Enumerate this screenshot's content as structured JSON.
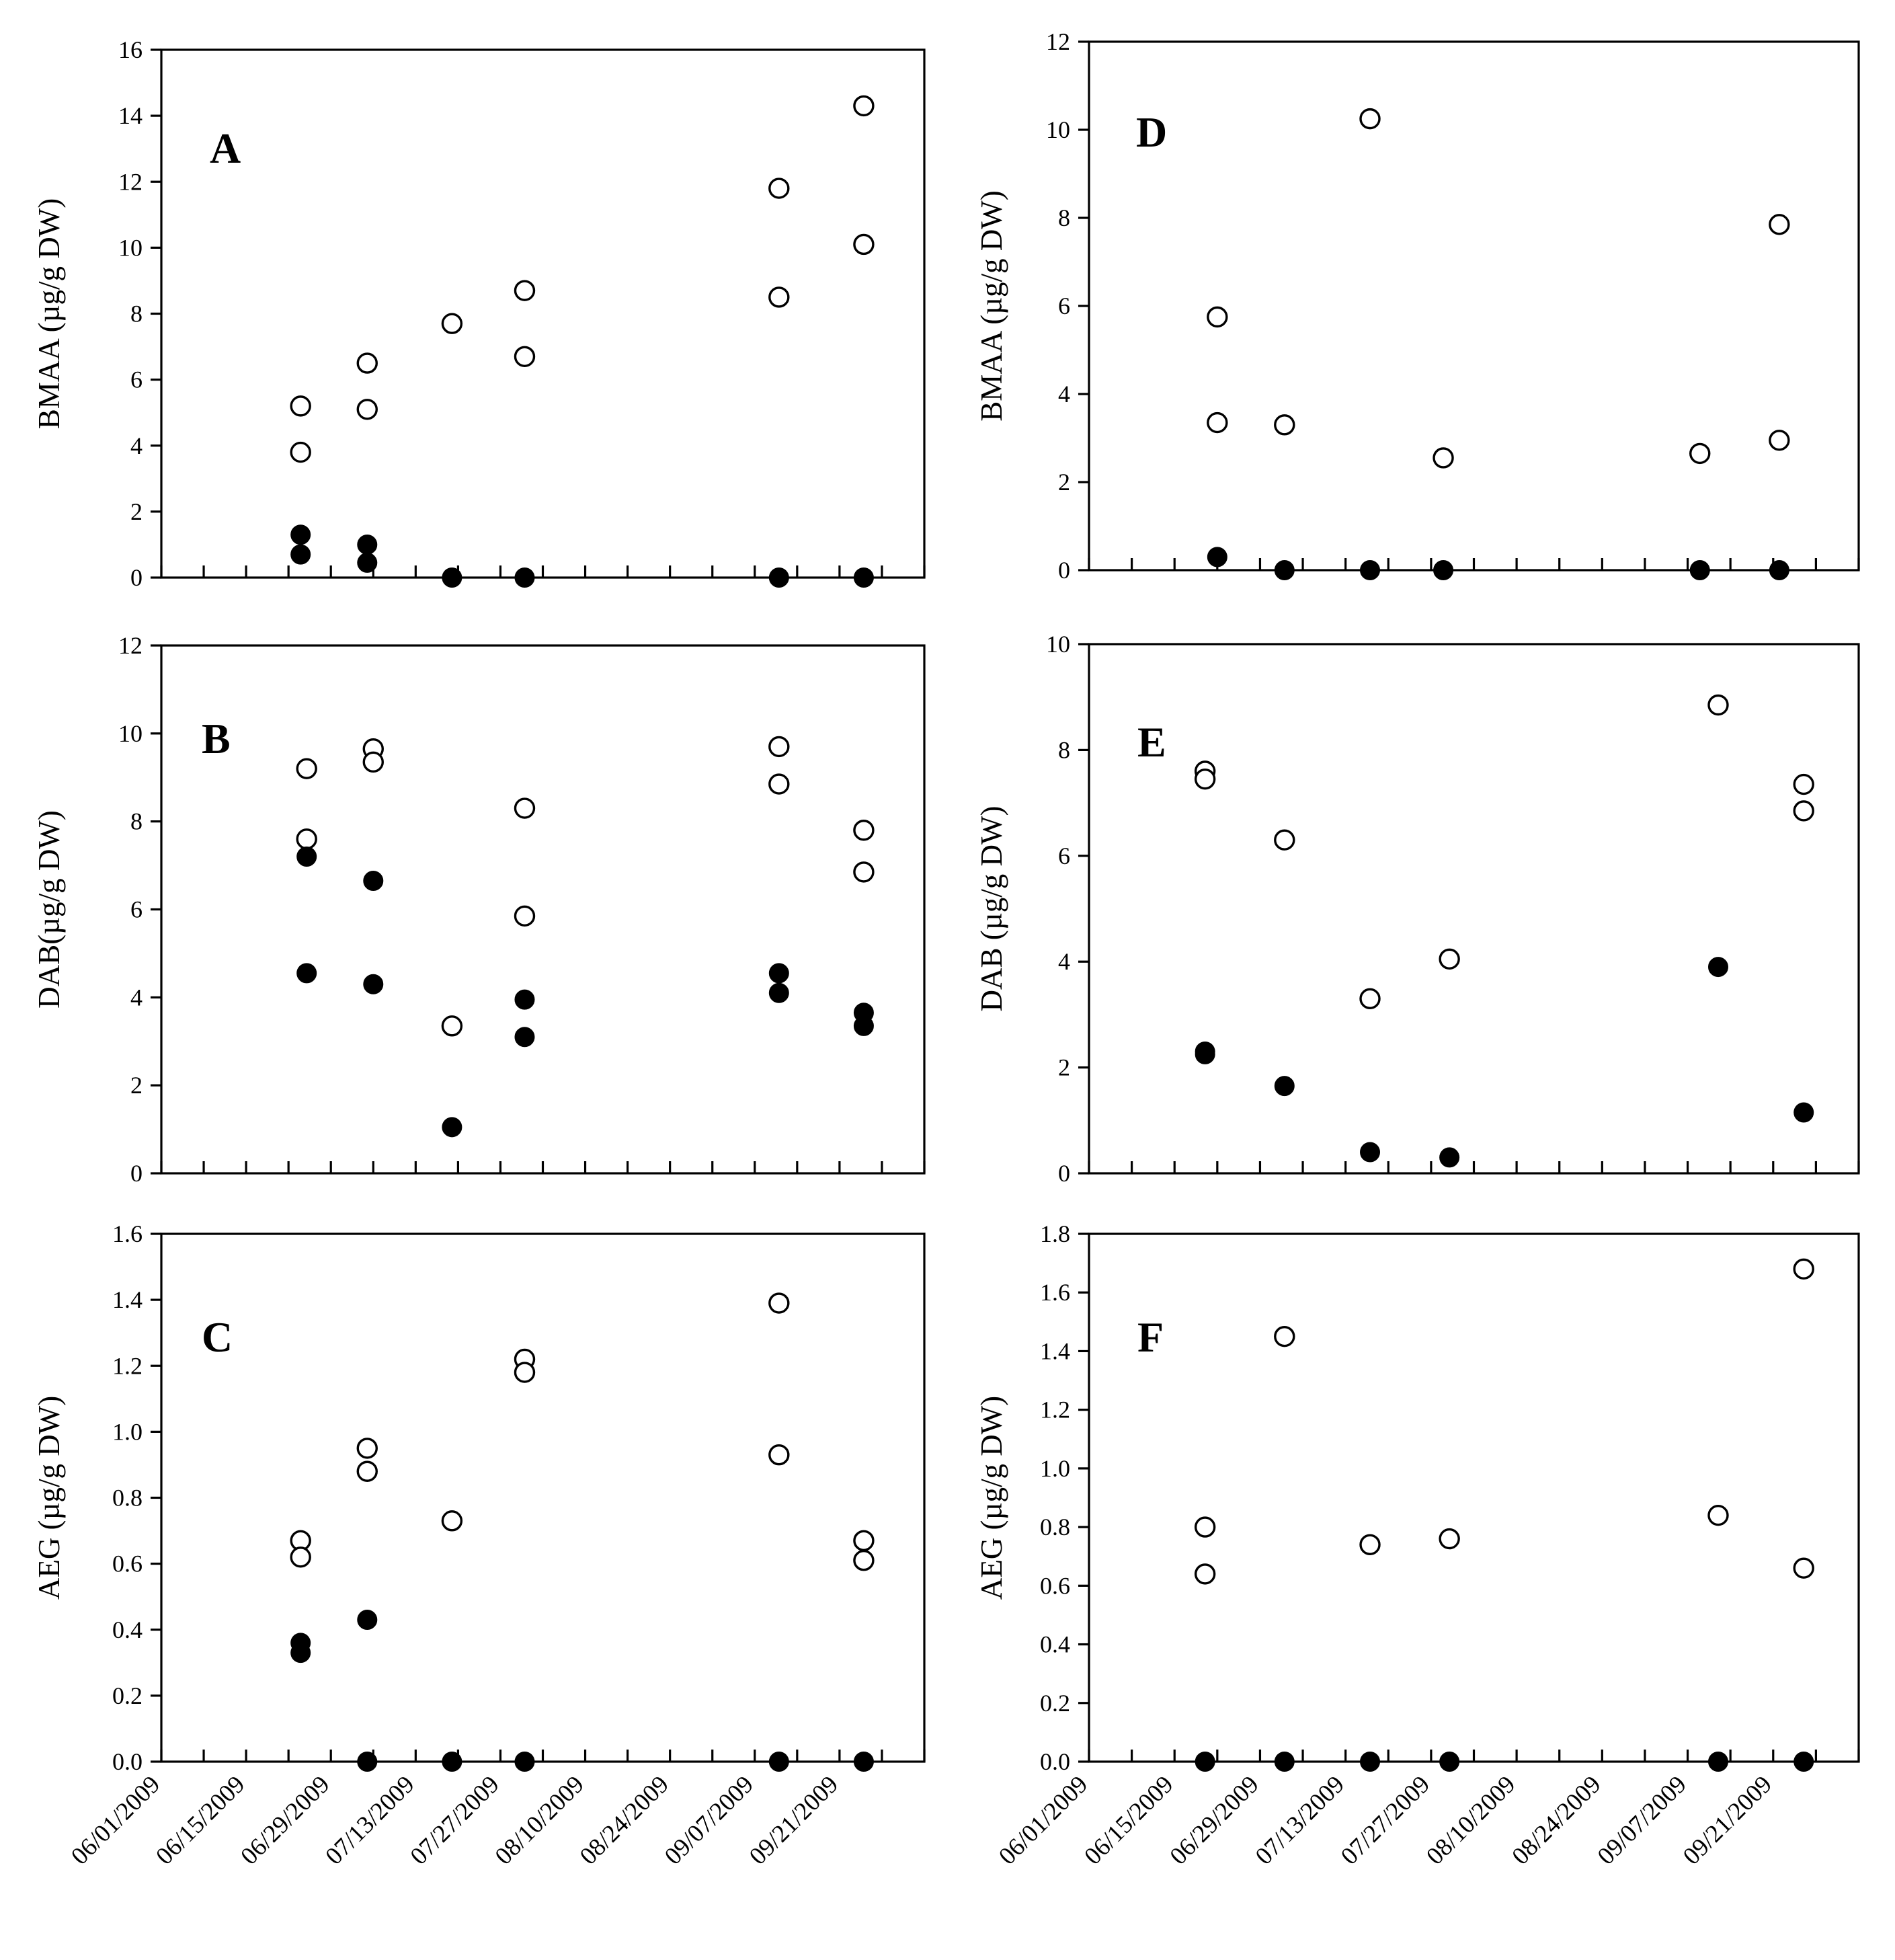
{
  "chart_data": [
    {
      "type": "scatter",
      "panel_label": "A",
      "ylabel": "BMAA (µg/g DW)",
      "ylim": [
        0,
        16
      ],
      "yticks": [
        "0",
        "2",
        "4",
        "6",
        "8",
        "10",
        "12",
        "14",
        "16"
      ],
      "xticks": [
        "06/01/2009",
        "06/15/2009",
        "06/29/2009",
        "07/13/2009",
        "07/27/2009",
        "08/10/2009",
        "08/24/2009",
        "09/07/2009",
        "09/21/2009"
      ],
      "series": [
        {
          "name": "open",
          "style": "open",
          "points": [
            [
              23,
              5.2
            ],
            [
              23,
              3.8
            ],
            [
              34,
              6.5
            ],
            [
              34,
              5.1
            ],
            [
              48,
              7.7
            ],
            [
              60,
              8.7
            ],
            [
              60,
              6.7
            ],
            [
              102,
              11.8
            ],
            [
              102,
              8.5
            ],
            [
              116,
              14.3
            ],
            [
              116,
              10.1
            ]
          ]
        },
        {
          "name": "filled",
          "style": "filled",
          "points": [
            [
              23,
              1.3
            ],
            [
              23,
              0.7
            ],
            [
              34,
              1.0
            ],
            [
              34,
              0.45
            ],
            [
              48,
              0
            ],
            [
              60,
              0
            ],
            [
              102,
              0
            ],
            [
              116,
              0
            ]
          ]
        }
      ]
    },
    {
      "type": "scatter",
      "panel_label": "B",
      "ylabel": "DAB(µg/g DW)",
      "ylim": [
        0,
        12
      ],
      "yticks": [
        "0",
        "2",
        "4",
        "6",
        "8",
        "10",
        "12"
      ],
      "xticks": [
        "06/01/2009",
        "06/15/2009",
        "06/29/2009",
        "07/13/2009",
        "07/27/2009",
        "08/10/2009",
        "08/24/2009",
        "09/07/2009",
        "09/21/2009"
      ],
      "series": [
        {
          "name": "open",
          "style": "open",
          "points": [
            [
              24,
              9.2
            ],
            [
              24,
              7.6
            ],
            [
              35,
              9.65
            ],
            [
              35,
              9.35
            ],
            [
              48,
              3.35
            ],
            [
              60,
              8.3
            ],
            [
              60,
              5.85
            ],
            [
              102,
              9.7
            ],
            [
              102,
              8.85
            ],
            [
              116,
              7.8
            ],
            [
              116,
              6.85
            ]
          ]
        },
        {
          "name": "filled",
          "style": "filled",
          "points": [
            [
              24,
              7.2
            ],
            [
              24,
              4.55
            ],
            [
              35,
              6.65
            ],
            [
              35,
              4.3
            ],
            [
              48,
              1.05
            ],
            [
              60,
              3.95
            ],
            [
              60,
              3.1
            ],
            [
              102,
              4.55
            ],
            [
              102,
              4.1
            ],
            [
              116,
              3.65
            ],
            [
              116,
              3.35
            ]
          ]
        }
      ]
    },
    {
      "type": "scatter",
      "panel_label": "C",
      "ylabel": "AEG (µg/g DW)",
      "ylim": [
        0,
        1.6
      ],
      "yticks": [
        "0.0",
        "0.2",
        "0.4",
        "0.6",
        "0.8",
        "1.0",
        "1.2",
        "1.4",
        "1.6"
      ],
      "xticks": [
        "06/01/2009",
        "06/15/2009",
        "06/29/2009",
        "07/13/2009",
        "07/27/2009",
        "08/10/2009",
        "08/24/2009",
        "09/07/2009",
        "09/21/2009"
      ],
      "series": [
        {
          "name": "open",
          "style": "open",
          "points": [
            [
              23,
              0.67
            ],
            [
              23,
              0.62
            ],
            [
              34,
              0.95
            ],
            [
              34,
              0.88
            ],
            [
              48,
              0.73
            ],
            [
              60,
              1.22
            ],
            [
              60,
              1.18
            ],
            [
              102,
              1.39
            ],
            [
              102,
              0.93
            ],
            [
              116,
              0.67
            ],
            [
              116,
              0.61
            ]
          ]
        },
        {
          "name": "filled",
          "style": "filled",
          "points": [
            [
              23,
              0.36
            ],
            [
              23,
              0.33
            ],
            [
              34,
              0.43
            ],
            [
              34,
              0
            ],
            [
              48,
              0
            ],
            [
              60,
              0
            ],
            [
              102,
              0
            ],
            [
              116,
              0
            ]
          ]
        }
      ]
    },
    {
      "type": "scatter",
      "panel_label": "D",
      "ylabel": "BMAA (µg/g DW)",
      "ylim": [
        0,
        12
      ],
      "yticks": [
        "0",
        "2",
        "4",
        "6",
        "8",
        "10",
        "12"
      ],
      "xticks": [
        "06/01/2009",
        "06/15/2009",
        "06/29/2009",
        "07/13/2009",
        "07/27/2009",
        "08/10/2009",
        "08/24/2009",
        "09/07/2009",
        "09/21/2009"
      ],
      "series": [
        {
          "name": "open",
          "style": "open",
          "points": [
            [
              21,
              5.75
            ],
            [
              21,
              3.35
            ],
            [
              32,
              3.3
            ],
            [
              46,
              10.25
            ],
            [
              58,
              2.55
            ],
            [
              100,
              2.65
            ],
            [
              113,
              7.85
            ],
            [
              113,
              2.95
            ]
          ]
        },
        {
          "name": "filled",
          "style": "filled",
          "points": [
            [
              21,
              0.3
            ],
            [
              32,
              0
            ],
            [
              46,
              0
            ],
            [
              58,
              0
            ],
            [
              100,
              0
            ],
            [
              113,
              0
            ]
          ]
        }
      ]
    },
    {
      "type": "scatter",
      "panel_label": "E",
      "ylabel": "DAB (µg/g DW)",
      "ylim": [
        0,
        10
      ],
      "yticks": [
        "0",
        "2",
        "4",
        "6",
        "8",
        "10"
      ],
      "xticks": [
        "06/01/2009",
        "06/15/2009",
        "06/29/2009",
        "07/13/2009",
        "07/27/2009",
        "08/10/2009",
        "08/24/2009",
        "09/07/2009",
        "09/21/2009"
      ],
      "series": [
        {
          "name": "open",
          "style": "open",
          "points": [
            [
              19,
              7.6
            ],
            [
              19,
              7.45
            ],
            [
              32,
              6.3
            ],
            [
              46,
              3.3
            ],
            [
              59,
              4.05
            ],
            [
              103,
              8.85
            ],
            [
              117,
              7.35
            ],
            [
              117,
              6.85
            ]
          ]
        },
        {
          "name": "filled",
          "style": "filled",
          "points": [
            [
              19,
              2.3
            ],
            [
              19,
              2.25
            ],
            [
              32,
              1.65
            ],
            [
              46,
              0.4
            ],
            [
              59,
              0.3
            ],
            [
              103,
              3.9
            ],
            [
              117,
              1.15
            ]
          ]
        }
      ]
    },
    {
      "type": "scatter",
      "panel_label": "F",
      "ylabel": "AEG (µg/g DW)",
      "ylim": [
        0,
        1.8
      ],
      "yticks": [
        "0.0",
        "0.2",
        "0.4",
        "0.6",
        "0.8",
        "1.0",
        "1.2",
        "1.4",
        "1.6",
        "1.8"
      ],
      "xticks": [
        "06/01/2009",
        "06/15/2009",
        "06/29/2009",
        "07/13/2009",
        "07/27/2009",
        "08/10/2009",
        "08/24/2009",
        "09/07/2009",
        "09/21/2009"
      ],
      "series": [
        {
          "name": "open",
          "style": "open",
          "points": [
            [
              19,
              0.8
            ],
            [
              19,
              0.64
            ],
            [
              32,
              1.45
            ],
            [
              46,
              0.74
            ],
            [
              59,
              0.76
            ],
            [
              103,
              0.84
            ],
            [
              117,
              1.68
            ],
            [
              117,
              0.66
            ]
          ]
        },
        {
          "name": "filled",
          "style": "filled",
          "points": [
            [
              19,
              0
            ],
            [
              32,
              0
            ],
            [
              46,
              0
            ],
            [
              59,
              0
            ],
            [
              103,
              0
            ],
            [
              117,
              0
            ]
          ]
        }
      ]
    }
  ]
}
